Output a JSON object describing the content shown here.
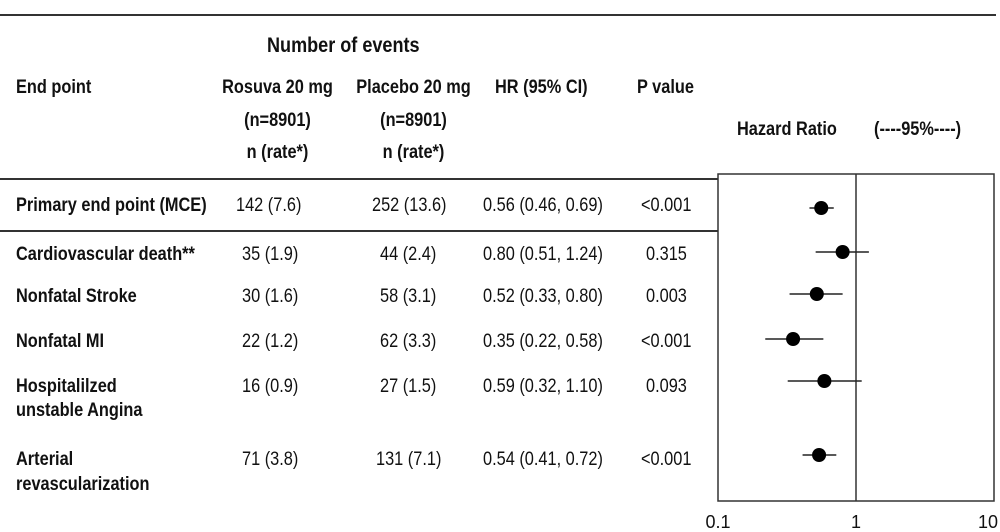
{
  "header": {
    "number_of_events": "Number of events",
    "end_point": "End point",
    "rosuva": [
      "Rosuva 20 mg",
      "(n=8901)",
      "n (rate*)"
    ],
    "placebo": [
      "Placebo 20 mg",
      "(n=8901)",
      "n (rate*)"
    ],
    "hr": "HR (95% CI)",
    "p_value": "P value",
    "hazard_ratio": "Hazard Ratio",
    "ci_legend": "(----95%----)"
  },
  "rows": [
    {
      "label": [
        "Primary end point (MCE)"
      ],
      "rosuva": "142 (7.6)",
      "placebo": "252 (13.6)",
      "hr": "0.56 (0.46, 0.69)",
      "p": "<0.001"
    },
    {
      "label": [
        "Cardiovascular death**"
      ],
      "rosuva": "35 (1.9)",
      "placebo": "44 (2.4)",
      "hr": "0.80 (0.51, 1.24)",
      "p": "0.315"
    },
    {
      "label": [
        "Nonfatal Stroke"
      ],
      "rosuva": "30 (1.6)",
      "placebo": "58 (3.1)",
      "hr": "0.52 (0.33, 0.80)",
      "p": "0.003"
    },
    {
      "label": [
        "Nonfatal MI"
      ],
      "rosuva": "22 (1.2)",
      "placebo": "62 (3.3)",
      "hr": "0.35 (0.22, 0.58)",
      "p": "<0.001"
    },
    {
      "label": [
        "Hospitalilzed",
        "unstable Angina"
      ],
      "rosuva": "16 (0.9)",
      "placebo": "27 (1.5)",
      "hr": "0.59 (0.32, 1.10)",
      "p": "0.093"
    },
    {
      "label": [
        "Arterial",
        "revascularization"
      ],
      "rosuva": "71 (3.8)",
      "placebo": "131 (7.1)",
      "hr": "0.54 (0.41, 0.72)",
      "p": "<0.001"
    }
  ],
  "chart_data": {
    "type": "scatter",
    "subtype": "forest-plot",
    "x_scale": "log",
    "xlim": [
      0.1,
      10
    ],
    "x_ticks": [
      "0.1",
      "1",
      "10"
    ],
    "reference_line": 1,
    "series": [
      {
        "values": [
          {
            "label": "Primary end point (MCE)",
            "hr": 0.56,
            "lo": 0.46,
            "hi": 0.69
          },
          {
            "label": "Cardiovascular death**",
            "hr": 0.8,
            "lo": 0.51,
            "hi": 1.24
          },
          {
            "label": "Nonfatal Stroke",
            "hr": 0.52,
            "lo": 0.33,
            "hi": 0.8
          },
          {
            "label": "Nonfatal MI",
            "hr": 0.35,
            "lo": 0.22,
            "hi": 0.58
          },
          {
            "label": "Hospitalilzed unstable Angina",
            "hr": 0.59,
            "lo": 0.32,
            "hi": 1.1
          },
          {
            "label": "Arterial revascularization",
            "hr": 0.54,
            "lo": 0.41,
            "hi": 0.72
          }
        ]
      }
    ],
    "colors": {
      "marker": "#000000",
      "line": "#222222"
    }
  }
}
